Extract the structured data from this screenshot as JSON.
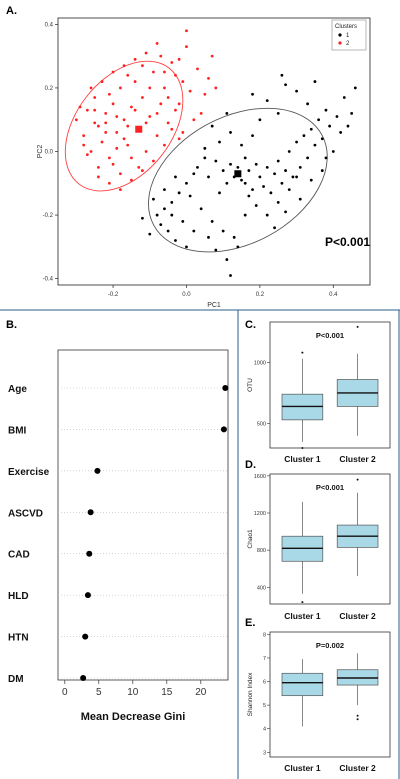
{
  "panels": {
    "A": "A.",
    "B": "B.",
    "C": "C.",
    "D": "D.",
    "E": "E."
  },
  "colors": {
    "cluster1": "#000000",
    "cluster2": "#ff2020",
    "ellipse1": "#555555",
    "ellipse2": "#ff4040",
    "box_fill": "#a9d8e6",
    "box_stroke": "#555555",
    "divider": "#2a5c8a"
  },
  "chart_data": [
    {
      "type": "scatter",
      "panel": "A",
      "xlabel": "PC1",
      "ylabel": "PC2",
      "xlim": [
        -0.35,
        0.5
      ],
      "ylim": [
        -0.42,
        0.42
      ],
      "xticks": [
        "-0.2",
        "0.0",
        "0.2",
        "0.4"
      ],
      "xtick_values": [
        -0.2,
        0.0,
        0.2,
        0.4
      ],
      "yticks": [
        "-0.4",
        "-0.2",
        "0.0",
        "0.2",
        "0.4"
      ],
      "ytick_values": [
        -0.4,
        -0.2,
        0.0,
        0.2,
        0.4
      ],
      "annotation": "P<0.001",
      "legend": {
        "title": "Clusters",
        "entries": [
          "1",
          "2"
        ],
        "placement": "top-right"
      },
      "series": [
        {
          "name": "1",
          "centroid": [
            0.14,
            -0.07
          ],
          "ellipse": {
            "cx": 0.14,
            "cy": -0.09,
            "rx": 0.26,
            "ry": 0.2,
            "angle_deg": 28
          },
          "points": [
            [
              0.03,
              -0.05
            ],
            [
              0.05,
              -0.02
            ],
            [
              0.06,
              -0.08
            ],
            [
              0.08,
              -0.03
            ],
            [
              0.1,
              -0.06
            ],
            [
              0.11,
              -0.1
            ],
            [
              0.12,
              -0.04
            ],
            [
              0.13,
              -0.08
            ],
            [
              0.14,
              -0.05
            ],
            [
              0.15,
              -0.09
            ],
            [
              0.16,
              -0.02
            ],
            [
              0.16,
              -0.1
            ],
            [
              0.17,
              -0.06
            ],
            [
              0.18,
              -0.12
            ],
            [
              0.19,
              -0.04
            ],
            [
              0.2,
              -0.08
            ],
            [
              0.21,
              -0.11
            ],
            [
              0.22,
              -0.05
            ],
            [
              0.23,
              -0.13
            ],
            [
              0.24,
              -0.07
            ],
            [
              0.25,
              -0.03
            ],
            [
              0.26,
              -0.1
            ],
            [
              0.27,
              -0.06
            ],
            [
              0.28,
              0.0
            ],
            [
              0.29,
              -0.08
            ],
            [
              0.3,
              0.03
            ],
            [
              0.31,
              -0.05
            ],
            [
              0.32,
              0.05
            ],
            [
              0.33,
              -0.02
            ],
            [
              0.34,
              0.07
            ],
            [
              0.35,
              0.02
            ],
            [
              0.36,
              0.1
            ],
            [
              0.37,
              0.04
            ],
            [
              0.38,
              0.13
            ],
            [
              0.39,
              0.08
            ],
            [
              0.4,
              0.0
            ],
            [
              0.41,
              0.11
            ],
            [
              0.42,
              0.06
            ],
            [
              0.43,
              0.17
            ],
            [
              0.45,
              0.12
            ],
            [
              0.46,
              0.2
            ],
            [
              0.35,
              0.22
            ],
            [
              0.33,
              0.15
            ],
            [
              0.3,
              0.19
            ],
            [
              0.27,
              0.21
            ],
            [
              0.25,
              0.12
            ],
            [
              0.22,
              0.16
            ],
            [
              0.2,
              0.1
            ],
            [
              0.18,
              0.05
            ],
            [
              0.15,
              0.02
            ],
            [
              0.12,
              0.06
            ],
            [
              0.09,
              0.03
            ],
            [
              0.07,
              0.08
            ],
            [
              0.05,
              0.01
            ],
            [
              0.02,
              -0.07
            ],
            [
              0.0,
              -0.1
            ],
            [
              -0.02,
              -0.13
            ],
            [
              -0.04,
              -0.16
            ],
            [
              -0.06,
              -0.18
            ],
            [
              -0.08,
              -0.2
            ],
            [
              -0.07,
              -0.23
            ],
            [
              -0.05,
              -0.25
            ],
            [
              -0.03,
              -0.28
            ],
            [
              0.0,
              -0.3
            ],
            [
              -0.1,
              -0.26
            ],
            [
              -0.12,
              -0.21
            ],
            [
              -0.09,
              -0.15
            ],
            [
              -0.06,
              -0.12
            ],
            [
              -0.03,
              -0.08
            ],
            [
              0.01,
              -0.14
            ],
            [
              0.04,
              -0.18
            ],
            [
              0.07,
              -0.22
            ],
            [
              0.1,
              -0.25
            ],
            [
              0.13,
              -0.27
            ],
            [
              0.16,
              -0.2
            ],
            [
              0.19,
              -0.17
            ],
            [
              0.22,
              -0.2
            ],
            [
              0.25,
              -0.16
            ],
            [
              0.28,
              -0.12
            ],
            [
              0.31,
              -0.15
            ],
            [
              0.34,
              -0.09
            ],
            [
              0.37,
              -0.06
            ],
            [
              0.12,
              -0.39
            ],
            [
              0.11,
              -0.34
            ],
            [
              0.14,
              -0.3
            ],
            [
              0.08,
              -0.31
            ],
            [
              -0.01,
              -0.22
            ],
            [
              0.02,
              -0.25
            ],
            [
              0.06,
              -0.27
            ],
            [
              -0.04,
              -0.2
            ],
            [
              0.09,
              -0.13
            ],
            [
              0.17,
              -0.14
            ],
            [
              0.24,
              -0.24
            ],
            [
              0.27,
              -0.19
            ],
            [
              0.3,
              -0.08
            ],
            [
              0.38,
              -0.02
            ],
            [
              0.44,
              0.08
            ],
            [
              0.26,
              0.24
            ],
            [
              0.18,
              0.18
            ],
            [
              0.11,
              0.12
            ]
          ]
        },
        {
          "name": "2",
          "centroid": [
            -0.13,
            0.07
          ],
          "ellipse": {
            "cx": -0.17,
            "cy": 0.08,
            "rx": 0.2,
            "ry": 0.15,
            "angle_deg": 52
          },
          "points": [
            [
              -0.3,
              0.1
            ],
            [
              -0.28,
              0.05
            ],
            [
              -0.27,
              0.13
            ],
            [
              -0.26,
              0.0
            ],
            [
              -0.25,
              0.17
            ],
            [
              -0.24,
              0.08
            ],
            [
              -0.23,
              0.03
            ],
            [
              -0.22,
              0.12
            ],
            [
              -0.21,
              -0.02
            ],
            [
              -0.2,
              0.15
            ],
            [
              -0.19,
              0.06
            ],
            [
              -0.18,
              0.2
            ],
            [
              -0.17,
              0.1
            ],
            [
              -0.16,
              0.02
            ],
            [
              -0.15,
              0.14
            ],
            [
              -0.14,
              0.22
            ],
            [
              -0.13,
              0.07
            ],
            [
              -0.12,
              0.17
            ],
            [
              -0.11,
              0.0
            ],
            [
              -0.1,
              0.11
            ],
            [
              -0.09,
              0.25
            ],
            [
              -0.08,
              0.05
            ],
            [
              -0.07,
              0.15
            ],
            [
              -0.06,
              0.2
            ],
            [
              -0.05,
              0.09
            ],
            [
              -0.04,
              0.28
            ],
            [
              -0.03,
              0.13
            ],
            [
              -0.02,
              0.04
            ],
            [
              -0.01,
              0.22
            ],
            [
              0.0,
              0.33
            ],
            [
              0.02,
              0.1
            ],
            [
              0.03,
              0.26
            ],
            [
              0.05,
              0.18
            ],
            [
              0.07,
              0.3
            ],
            [
              -0.29,
              0.14
            ],
            [
              -0.27,
              -0.01
            ],
            [
              -0.25,
              0.09
            ],
            [
              -0.24,
              -0.05
            ],
            [
              -0.22,
              0.06
            ],
            [
              -0.21,
              0.18
            ],
            [
              -0.2,
              -0.04
            ],
            [
              -0.19,
              0.11
            ],
            [
              -0.18,
              -0.07
            ],
            [
              -0.17,
              0.04
            ],
            [
              -0.16,
              0.24
            ],
            [
              -0.15,
              -0.02
            ],
            [
              -0.14,
              0.13
            ],
            [
              -0.13,
              -0.05
            ],
            [
              -0.12,
              0.27
            ],
            [
              -0.11,
              0.09
            ],
            [
              -0.1,
              0.2
            ],
            [
              -0.09,
              -0.03
            ],
            [
              -0.08,
              0.12
            ],
            [
              -0.07,
              0.3
            ],
            [
              -0.06,
              0.02
            ],
            [
              -0.05,
              0.17
            ],
            [
              -0.04,
              0.07
            ],
            [
              -0.03,
              0.24
            ],
            [
              -0.02,
              0.15
            ],
            [
              -0.01,
              0.06
            ],
            [
              0.01,
              0.19
            ],
            [
              0.04,
              0.12
            ],
            [
              0.06,
              0.23
            ],
            [
              -0.26,
              0.2
            ],
            [
              -0.23,
              0.22
            ],
            [
              -0.2,
              0.25
            ],
            [
              -0.17,
              0.27
            ],
            [
              -0.14,
              0.29
            ],
            [
              -0.11,
              0.31
            ],
            [
              -0.08,
              0.34
            ],
            [
              -0.28,
              0.02
            ],
            [
              -0.24,
              -0.08
            ],
            [
              -0.21,
              -0.1
            ],
            [
              -0.18,
              -0.12
            ],
            [
              -0.15,
              -0.09
            ],
            [
              -0.12,
              -0.06
            ],
            [
              -0.16,
              0.08
            ],
            [
              -0.19,
              0.01
            ],
            [
              -0.22,
              0.09
            ],
            [
              -0.25,
              0.13
            ],
            [
              0.0,
              0.38
            ],
            [
              -0.06,
              0.25
            ],
            [
              -0.02,
              0.29
            ],
            [
              0.08,
              0.2
            ]
          ]
        }
      ]
    },
    {
      "type": "dot",
      "panel": "B",
      "xlabel": "Mean Decrease Gini",
      "xlim": [
        -1,
        24
      ],
      "xticks": [
        "0",
        "5",
        "10",
        "15",
        "20"
      ],
      "xtick_values": [
        0,
        5,
        10,
        15,
        20
      ],
      "categories": [
        "Age",
        "BMI",
        "Exercise",
        "ASCVD",
        "CAD",
        "HLD",
        "HTN",
        "DM"
      ],
      "values": [
        23.6,
        23.4,
        4.8,
        3.8,
        3.6,
        3.4,
        3.0,
        2.7
      ]
    },
    {
      "type": "box",
      "panel": "C",
      "ylabel": "OTU",
      "annotation": "P<0.001",
      "ylim": [
        300,
        1330
      ],
      "yticks": [
        "500",
        "1000"
      ],
      "ytick_values": [
        500,
        1000
      ],
      "categories": [
        "Cluster 1",
        "Cluster 2"
      ],
      "boxes": [
        {
          "whisker_low": 350,
          "q1": 530,
          "median": 640,
          "q3": 740,
          "whisker_high": 1030,
          "outliers": [
            300,
            1080
          ]
        },
        {
          "whisker_low": 400,
          "q1": 640,
          "median": 750,
          "q3": 860,
          "whisker_high": 1070,
          "outliers": [
            1290
          ]
        }
      ]
    },
    {
      "type": "box",
      "panel": "D",
      "ylabel": "Chao1",
      "annotation": "P<0.001",
      "ylim": [
        220,
        1620
      ],
      "yticks": [
        "400",
        "800",
        "1200",
        "1600"
      ],
      "ytick_values": [
        400,
        800,
        1200,
        1600
      ],
      "categories": [
        "Cluster 1",
        "Cluster 2"
      ],
      "boxes": [
        {
          "whisker_low": 330,
          "q1": 680,
          "median": 820,
          "q3": 950,
          "whisker_high": 1320,
          "outliers": [
            240
          ]
        },
        {
          "whisker_low": 520,
          "q1": 830,
          "median": 950,
          "q3": 1070,
          "whisker_high": 1420,
          "outliers": [
            1560
          ]
        }
      ]
    },
    {
      "type": "box",
      "panel": "E",
      "ylabel": "Shannon Index",
      "annotation": "P=0.002",
      "ylim": [
        2.8,
        8.1
      ],
      "yticks": [
        "3",
        "4",
        "5",
        "6",
        "7",
        "8"
      ],
      "ytick_values": [
        3,
        4,
        5,
        6,
        7,
        8
      ],
      "categories": [
        "Cluster 1",
        "Cluster 2"
      ],
      "boxes": [
        {
          "whisker_low": 4.1,
          "q1": 5.4,
          "median": 5.95,
          "q3": 6.35,
          "whisker_high": 6.95,
          "outliers": []
        },
        {
          "whisker_low": 5.0,
          "q1": 5.85,
          "median": 6.15,
          "q3": 6.5,
          "whisker_high": 7.2,
          "outliers": [
            4.55,
            4.4
          ]
        }
      ]
    }
  ]
}
